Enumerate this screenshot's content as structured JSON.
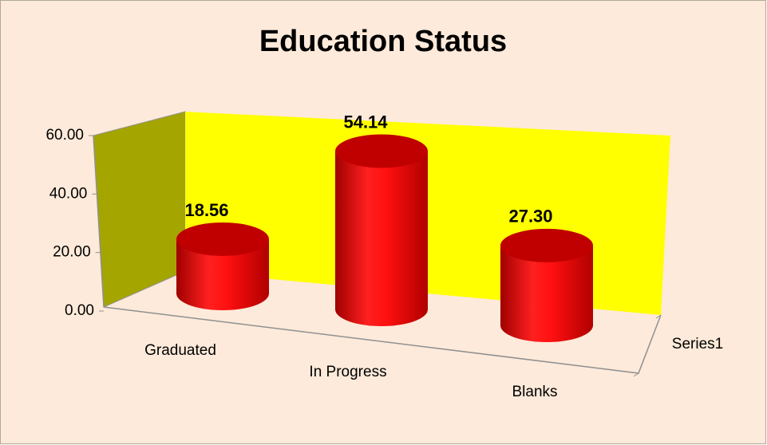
{
  "chart_data": {
    "type": "bar3d",
    "title": "Education Status",
    "categories": [
      "Graduated",
      "In Progress",
      "Blanks"
    ],
    "series": [
      {
        "name": "Series1",
        "color": "#ff0000",
        "values": [
          18.56,
          54.14,
          27.3
        ],
        "value_labels": [
          "18.56",
          "54.14",
          "27.30"
        ]
      }
    ],
    "ylim": [
      0,
      60
    ],
    "yticks": [
      {
        "value": 0,
        "label": "0.00"
      },
      {
        "value": 20,
        "label": "20.00"
      },
      {
        "value": 40,
        "label": "40.00"
      },
      {
        "value": 60,
        "label": "60.00"
      }
    ],
    "grid": false,
    "back_wall_color": "#ffff00",
    "side_wall_color": "#a5a500",
    "background": "#fdeada"
  }
}
